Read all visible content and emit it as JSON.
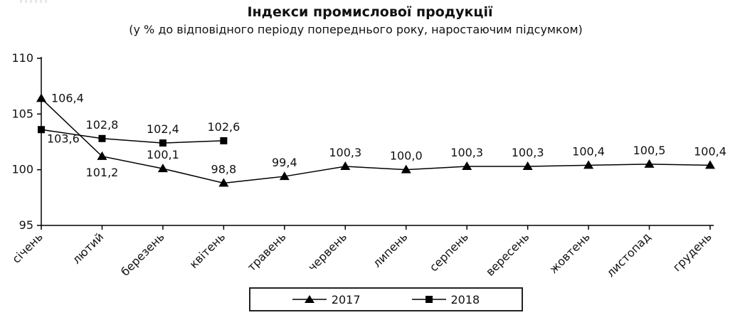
{
  "chart_data": {
    "type": "line",
    "title": "Індекси промислової продукції",
    "subtitle": "(у % до відповідного періоду попереднього року, наростаючим підсумком)",
    "categories": [
      "січень",
      "лютий",
      "березень",
      "квітень",
      "травень",
      "червень",
      "липень",
      "серпень",
      "вересень",
      "жовтень",
      "листопад",
      "грудень"
    ],
    "y_ticks": [
      110,
      105,
      100,
      95
    ],
    "ylim": [
      95,
      110
    ],
    "grid": false,
    "legend_position": "bottom",
    "line_color": "#000000",
    "text_color": "#111111",
    "series": [
      {
        "name": "2017",
        "marker": "triangle",
        "values": [
          106.4,
          101.2,
          100.1,
          98.8,
          99.4,
          100.3,
          100.0,
          100.3,
          100.3,
          100.4,
          100.5,
          100.4
        ],
        "labels": [
          "106,4",
          "101,2",
          "100,1",
          "98,8",
          "99,4",
          "100,3",
          "100,0",
          "100,3",
          "100,3",
          "100,4",
          "100,5",
          "100,4"
        ],
        "label_pos": [
          "right",
          "below",
          "above",
          "above",
          "above",
          "above",
          "above",
          "above",
          "above",
          "above",
          "above",
          "above"
        ]
      },
      {
        "name": "2018",
        "marker": "square",
        "values": [
          103.6,
          102.8,
          102.4,
          102.6,
          null,
          null,
          null,
          null,
          null,
          null,
          null,
          null
        ],
        "labels": [
          "103,6",
          "102,8",
          "102,4",
          "102,6"
        ],
        "label_pos": [
          "below-right",
          "above",
          "above",
          "above"
        ]
      }
    ]
  }
}
